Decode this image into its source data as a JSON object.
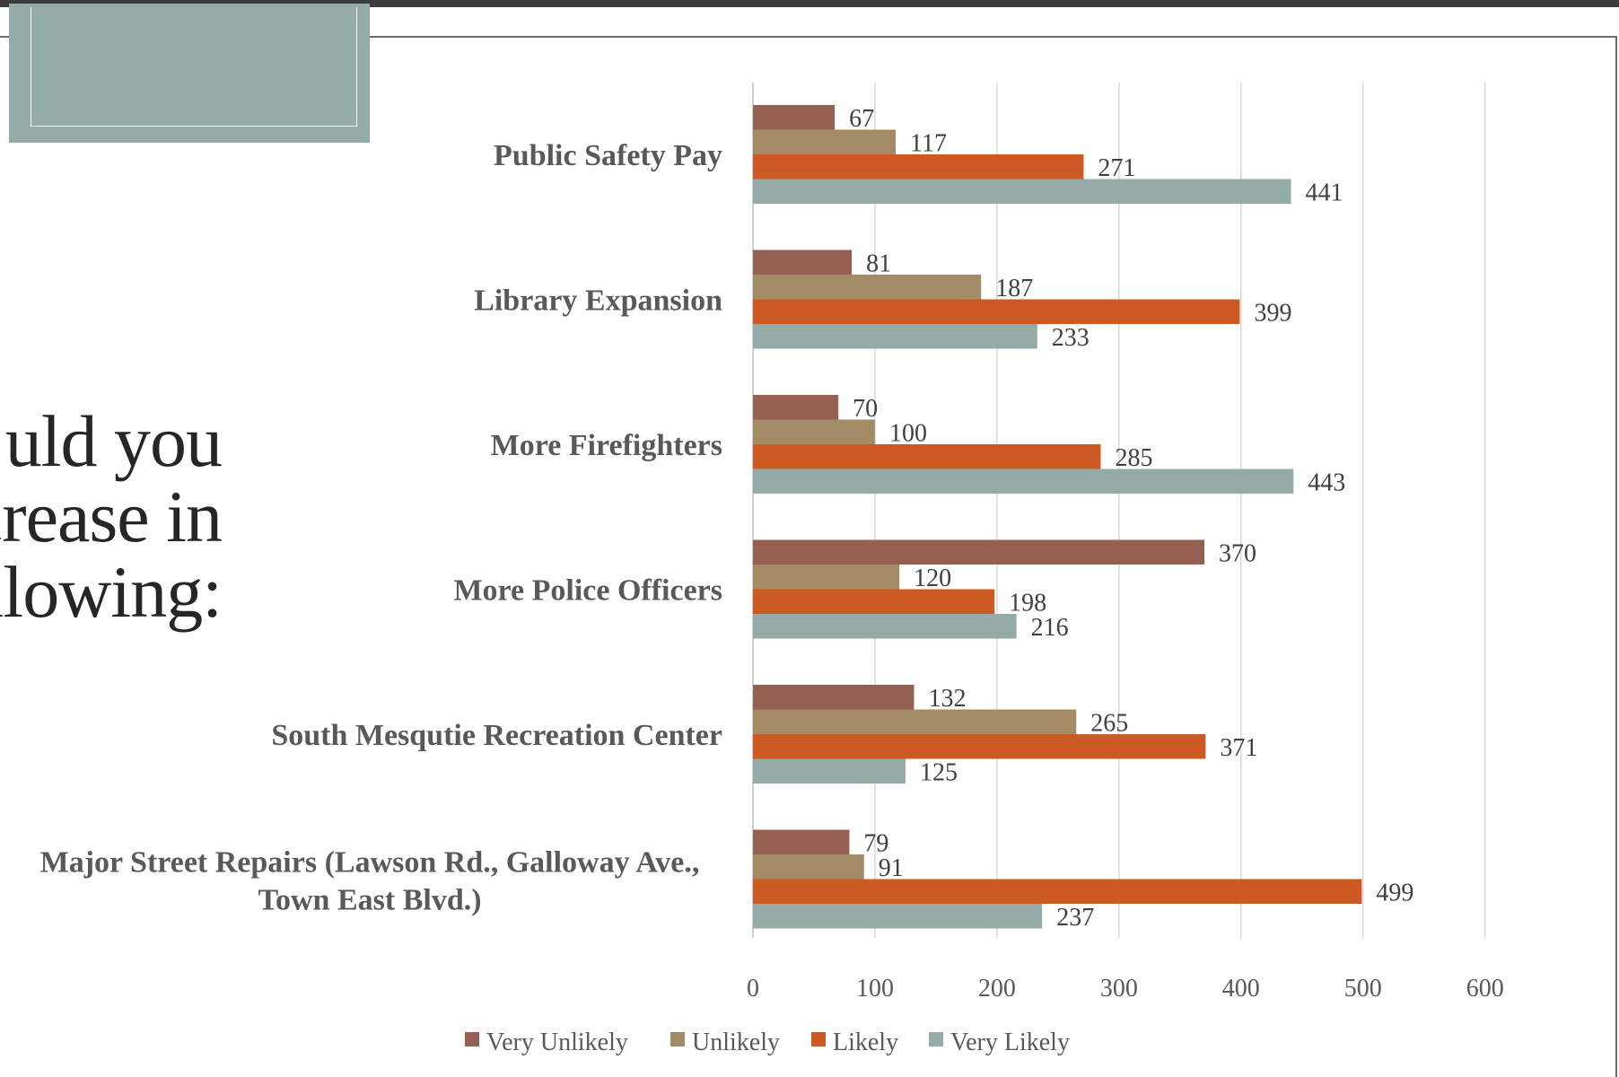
{
  "slide": {
    "title": "uld you\ncrease in\nllowing:"
  },
  "chart_data": {
    "type": "bar",
    "orientation": "horizontal",
    "categories": [
      "Public Safety Pay",
      "Library Expansion",
      "More Firefighters",
      "More Police Officers",
      "South Mesqutie Recreation Center",
      "Major Street Repairs (Lawson Rd., Galloway Ave.,\nTown East Blvd.)"
    ],
    "series": [
      {
        "name": "Very Unlikely",
        "color": "#955f52",
        "values": [
          67,
          81,
          70,
          370,
          132,
          79
        ]
      },
      {
        "name": "Unlikely",
        "color": "#a38b66",
        "values": [
          117,
          187,
          100,
          120,
          265,
          91
        ]
      },
      {
        "name": "Likely",
        "color": "#cc5a22",
        "values": [
          271,
          399,
          285,
          198,
          371,
          499
        ]
      },
      {
        "name": "Very Likely",
        "color": "#95aba7",
        "values": [
          441,
          233,
          443,
          216,
          125,
          237
        ]
      }
    ],
    "xlim": [
      0,
      600
    ],
    "xticks": [
      0,
      100,
      200,
      300,
      400,
      500,
      600
    ],
    "grid": true,
    "legend": "bottom"
  }
}
